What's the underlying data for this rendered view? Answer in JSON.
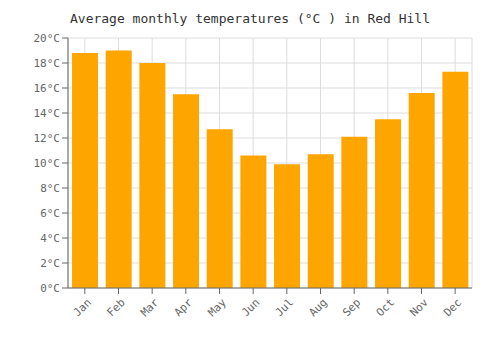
{
  "chart_data": {
    "type": "bar",
    "title": "Average monthly temperatures (°C ) in Red Hill",
    "categories": [
      "Jan",
      "Feb",
      "Mar",
      "Apr",
      "May",
      "Jun",
      "Jul",
      "Aug",
      "Sep",
      "Oct",
      "Nov",
      "Dec"
    ],
    "values": [
      18.8,
      19.0,
      18.0,
      15.5,
      12.7,
      10.6,
      9.9,
      10.7,
      12.1,
      13.5,
      15.6,
      17.3
    ],
    "color": "#FFA500",
    "ylim": [
      0,
      20
    ],
    "yticks": [
      {
        "value": 0,
        "label": "0°C"
      },
      {
        "value": 2,
        "label": "2°C"
      },
      {
        "value": 4,
        "label": "4°C"
      },
      {
        "value": 6,
        "label": "6°C"
      },
      {
        "value": 8,
        "label": "8°C"
      },
      {
        "value": 10,
        "label": "10°C"
      },
      {
        "value": 12,
        "label": "12°C"
      },
      {
        "value": 14,
        "label": "14°C"
      },
      {
        "value": 16,
        "label": "16°C"
      },
      {
        "value": 18,
        "label": "18°C"
      },
      {
        "value": 20,
        "label": "20°C"
      }
    ],
    "grid": true
  }
}
